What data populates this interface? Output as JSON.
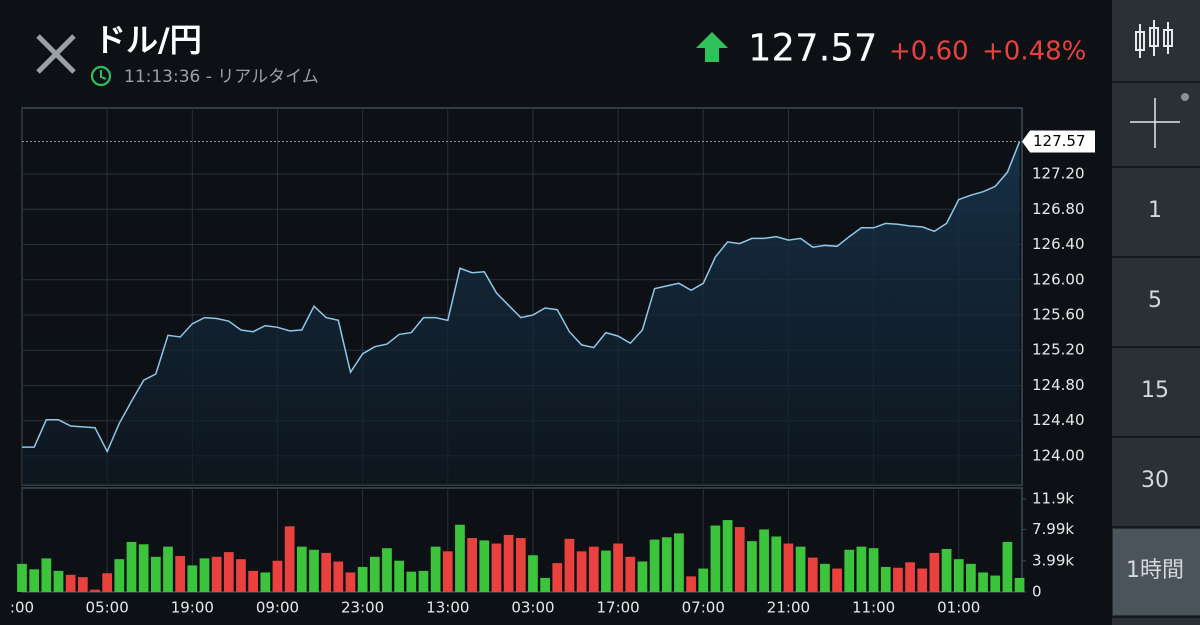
{
  "header": {
    "title": "ドル/円",
    "time": "11:13:36 - リアルタイム",
    "price": "127.57",
    "change": "+0.60",
    "change_pct": "+0.48%"
  },
  "toolbar": {
    "intervals": [
      "1",
      "5",
      "15",
      "30",
      "1時間"
    ],
    "selected": 4
  },
  "chart_data": [
    {
      "type": "line",
      "color": "#8fc7e8",
      "grid": true,
      "ylim": [
        123.67,
        127.95
      ],
      "yticks": [
        {
          "value": 124.0,
          "label": "124.00"
        },
        {
          "value": 124.4,
          "label": "124.40"
        },
        {
          "value": 124.8,
          "label": "124.80"
        },
        {
          "value": 125.2,
          "label": "125.20"
        },
        {
          "value": 125.6,
          "label": "125.60"
        },
        {
          "value": 126.0,
          "label": "126.00"
        },
        {
          "value": 126.4,
          "label": "126.40"
        },
        {
          "value": 126.8,
          "label": "126.80"
        },
        {
          "value": 127.2,
          "label": "127.20"
        }
      ],
      "values": [
        124.1,
        124.1,
        124.41,
        124.41,
        124.34,
        124.33,
        124.32,
        124.05,
        124.37,
        124.62,
        124.86,
        124.93,
        125.37,
        125.35,
        125.5,
        125.57,
        125.56,
        125.53,
        125.43,
        125.41,
        125.48,
        125.46,
        125.42,
        125.43,
        125.7,
        125.57,
        125.54,
        124.95,
        125.16,
        125.24,
        125.27,
        125.38,
        125.4,
        125.57,
        125.57,
        125.54,
        126.13,
        126.08,
        126.09,
        125.85,
        125.71,
        125.57,
        125.6,
        125.68,
        125.66,
        125.41,
        125.26,
        125.23,
        125.4,
        125.36,
        125.28,
        125.43,
        125.9,
        125.93,
        125.96,
        125.88,
        125.96,
        126.26,
        126.43,
        126.41,
        126.47,
        126.47,
        126.49,
        126.45,
        126.47,
        126.37,
        126.39,
        126.38,
        126.49,
        126.59,
        126.59,
        126.64,
        126.63,
        126.61,
        126.6,
        126.55,
        126.64,
        126.91,
        126.96,
        127.0,
        127.06,
        127.22,
        127.57
      ]
    },
    {
      "type": "bar",
      "colors": {
        "up": "#3cc43c",
        "down": "#e8413e"
      },
      "ylim": [
        0,
        13300
      ],
      "yticks": [
        0,
        {
          "value": 3990,
          "label": "3.99k"
        },
        {
          "value": 7990,
          "label": "7.99k"
        },
        {
          "value": 11900,
          "label": "11.9k"
        }
      ],
      "categories": [
        ":00",
        null,
        null,
        null,
        null,
        null,
        null,
        "05:00",
        null,
        null,
        null,
        null,
        null,
        null,
        "19:00",
        null,
        null,
        null,
        null,
        null,
        null,
        "09:00",
        null,
        null,
        null,
        null,
        null,
        null,
        "23:00",
        null,
        null,
        null,
        null,
        null,
        null,
        "13:00",
        null,
        null,
        null,
        null,
        null,
        null,
        "03:00",
        null,
        null,
        null,
        null,
        null,
        null,
        "17:00",
        null,
        null,
        null,
        null,
        null,
        null,
        "07:00",
        null,
        null,
        null,
        null,
        null,
        null,
        "21:00",
        null,
        null,
        null,
        null,
        null,
        null,
        "11:00",
        null,
        null,
        null,
        null,
        null,
        null,
        "01:00",
        null,
        null,
        null,
        null,
        null
      ],
      "values": [
        3600,
        2900,
        4300,
        2700,
        2200,
        1900,
        300,
        2400,
        4200,
        6400,
        6100,
        4500,
        5800,
        4600,
        3400,
        4300,
        4500,
        5100,
        4200,
        2700,
        2500,
        4000,
        8400,
        5800,
        5400,
        5000,
        3900,
        2500,
        3200,
        4500,
        5600,
        4000,
        2600,
        2700,
        5800,
        5200,
        8600,
        6900,
        6600,
        6200,
        7300,
        6900,
        4700,
        1800,
        3700,
        6800,
        5200,
        5800,
        5300,
        6200,
        4500,
        3900,
        6700,
        7000,
        7500,
        2000,
        3000,
        8500,
        9200,
        8300,
        6500,
        8000,
        7100,
        6200,
        5800,
        4400,
        3600,
        3000,
        5400,
        5800,
        5600,
        3200,
        3100,
        3800,
        3000,
        5000,
        5500,
        4200,
        3600,
        2500,
        2100,
        6400,
        1800
      ]
    }
  ]
}
